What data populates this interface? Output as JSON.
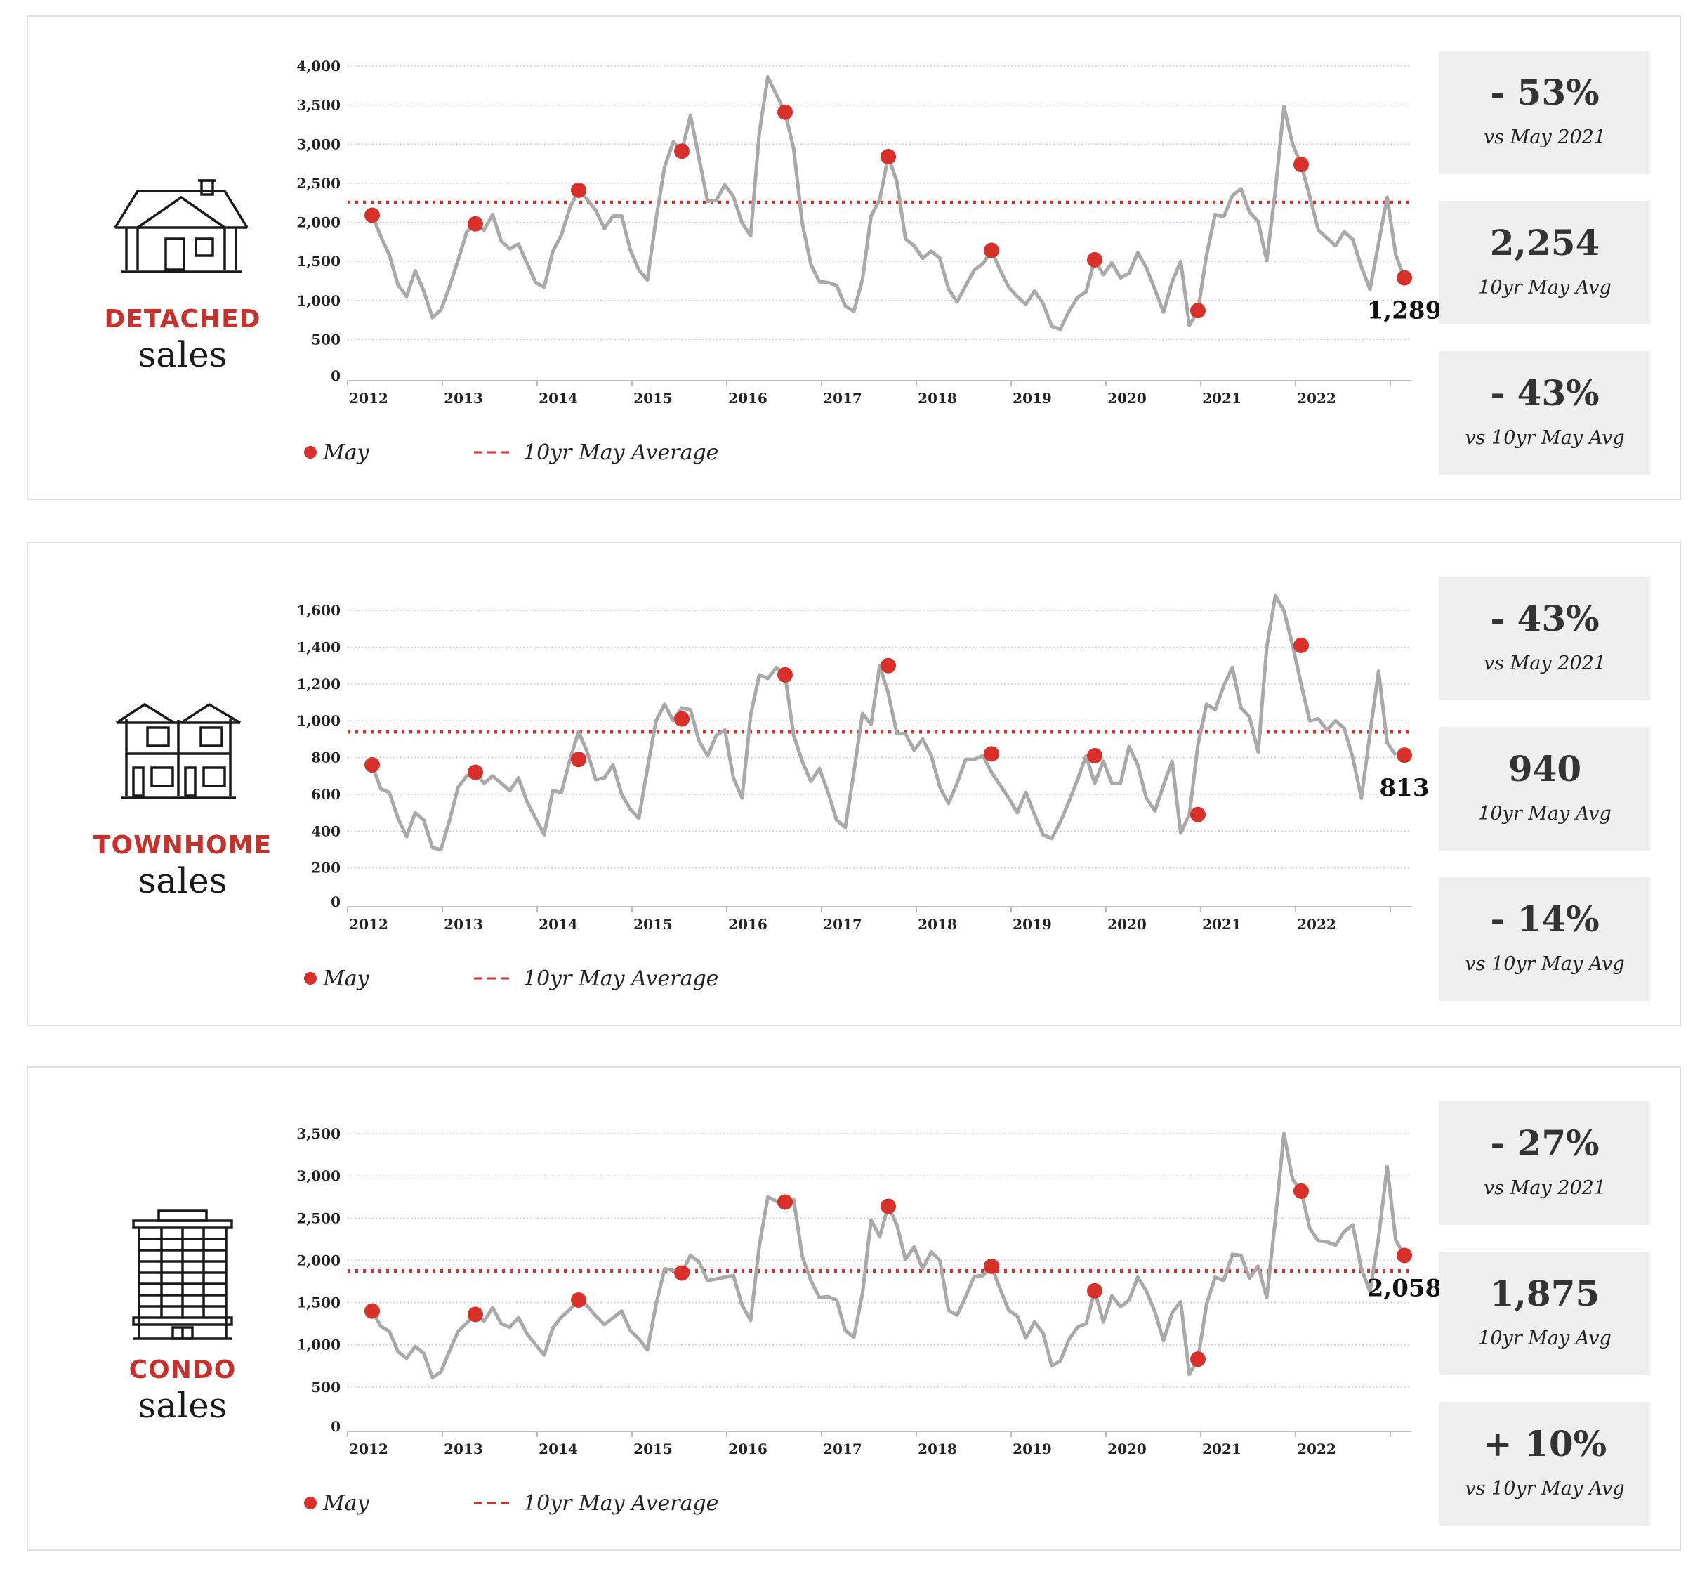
{
  "colors": {
    "accent": "#c8312b",
    "line": "#a9a9a9",
    "dot": "#d9302a",
    "box": "#efefef"
  },
  "x_tick_labels": [
    "2012",
    "2013",
    "2014",
    "2015",
    "2016",
    "2017",
    "2018",
    "2019",
    "2020",
    "2021",
    "2022"
  ],
  "legend": {
    "may": "May",
    "avg": "10yr May Average"
  },
  "panels": [
    {
      "id": "detached",
      "icon": "house-icon",
      "type_label": "DETACHED",
      "sales_label": "sales",
      "stats": [
        {
          "big": "- 53%",
          "small": "vs May 2021"
        },
        {
          "big": "2,254",
          "small": "10yr  May Avg"
        },
        {
          "big": "- 43%",
          "small": "vs 10yr May Avg"
        }
      ]
    },
    {
      "id": "townhome",
      "icon": "townhome-icon",
      "type_label": "TOWNHOME",
      "sales_label": "sales",
      "stats": [
        {
          "big": "- 43%",
          "small": "vs May 2021"
        },
        {
          "big": "940",
          "small": "10yr  May Avg"
        },
        {
          "big": "- 14%",
          "small": "vs 10yr May Avg"
        }
      ]
    },
    {
      "id": "condo",
      "icon": "condo-building-icon",
      "type_label": "CONDO",
      "sales_label": "sales",
      "stats": [
        {
          "big": "- 27%",
          "small": "vs May 2021"
        },
        {
          "big": "1,875",
          "small": "10yr  May Avg"
        },
        {
          "big": "+ 10%",
          "small": "vs 10yr May Avg"
        }
      ]
    }
  ],
  "chart_data": [
    {
      "type": "line",
      "title": "",
      "xlabel": "",
      "ylabel": "",
      "ylim": [
        0,
        4000
      ],
      "yticks": [
        0,
        500,
        1000,
        1500,
        2000,
        2500,
        3000,
        3500,
        4000
      ],
      "ytick_labels": [
        "0",
        "500",
        "1,000",
        "1,500",
        "2,000",
        "2,500",
        "3,000",
        "3,500",
        "4,000"
      ],
      "x_start": "2012-05",
      "x_end": "2022-05",
      "series": [
        {
          "name": "",
          "values": [
            2090,
            1820,
            1580,
            1200,
            1050,
            1380,
            1120,
            780,
            880,
            1180,
            1520,
            1880,
            1980,
            1900,
            2100,
            1760,
            1660,
            1720,
            1480,
            1230,
            1170,
            1630,
            1840,
            2190,
            2410,
            2290,
            2150,
            1920,
            2080,
            2080,
            1650,
            1390,
            1260,
            2040,
            2710,
            3030,
            2910,
            3370,
            2820,
            2270,
            2280,
            2480,
            2330,
            1990,
            1830,
            3140,
            3860,
            3630,
            3410,
            2940,
            1990,
            1460,
            1240,
            1230,
            1190,
            930,
            860,
            1270,
            2080,
            2290,
            2840,
            2520,
            1790,
            1700,
            1540,
            1630,
            1540,
            1150,
            980,
            1190,
            1390,
            1470,
            1640,
            1390,
            1170,
            1050,
            950,
            1120,
            960,
            670,
            630,
            860,
            1040,
            1110,
            1520,
            1330,
            1480,
            1290,
            1350,
            1610,
            1420,
            1140,
            850,
            1240,
            1500,
            680,
            870,
            1580,
            2100,
            2070,
            2340,
            2430,
            2130,
            2010,
            1510,
            2410,
            3480,
            3000,
            2740,
            2330,
            1900,
            1800,
            1700,
            1880,
            1780,
            1430,
            1140,
            1730,
            2320,
            1580,
            1289
          ]
        }
      ],
      "may_points": {
        "name": "May",
        "x": [
          "2012-05",
          "2013-05",
          "2014-05",
          "2015-05",
          "2016-05",
          "2017-05",
          "2018-05",
          "2019-05",
          "2020-05",
          "2021-05",
          "2022-05"
        ],
        "values": [
          2090,
          1980,
          2410,
          2910,
          3410,
          2840,
          1640,
          1520,
          870,
          2740,
          1289
        ]
      },
      "average": {
        "name": "10yr May Average",
        "value": 2254
      },
      "annotation": {
        "x": "2022-05",
        "text": "1,289"
      },
      "grid": true,
      "legend_position": "bottom-left"
    },
    {
      "type": "line",
      "title": "",
      "xlabel": "",
      "ylabel": "",
      "ylim": [
        0,
        1700
      ],
      "yticks": [
        0,
        200,
        400,
        600,
        800,
        1000,
        1200,
        1400,
        1600
      ],
      "ytick_labels": [
        "0",
        "200",
        "400",
        "600",
        "800",
        "1,000",
        "1,200",
        "1,400",
        "1,600"
      ],
      "x_start": "2012-05",
      "x_end": "2022-05",
      "series": [
        {
          "name": "",
          "values": [
            760,
            630,
            610,
            470,
            370,
            500,
            460,
            310,
            300,
            460,
            640,
            700,
            720,
            660,
            700,
            660,
            620,
            690,
            560,
            470,
            380,
            620,
            610,
            790,
            940,
            830,
            680,
            690,
            760,
            600,
            520,
            470,
            740,
            1000,
            1090,
            1000,
            1070,
            1060,
            890,
            810,
            920,
            950,
            690,
            580,
            1030,
            1250,
            1230,
            1290,
            1250,
            920,
            780,
            670,
            740,
            610,
            460,
            420,
            720,
            1040,
            980,
            1300,
            1150,
            930,
            930,
            840,
            900,
            810,
            640,
            550,
            660,
            790,
            790,
            810,
            720,
            650,
            580,
            500,
            610,
            490,
            380,
            360,
            450,
            560,
            680,
            810,
            660,
            780,
            660,
            660,
            860,
            760,
            580,
            510,
            650,
            780,
            390,
            490,
            870,
            1090,
            1060,
            1190,
            1290,
            1070,
            1020,
            830,
            1400,
            1680,
            1600,
            1410,
            1200,
            1000,
            1010,
            950,
            1000,
            960,
            800,
            580,
            930,
            1270,
            880,
            813
          ]
        }
      ],
      "may_points": {
        "name": "May",
        "x": [
          "2012-05",
          "2013-05",
          "2014-05",
          "2015-05",
          "2016-05",
          "2017-05",
          "2018-05",
          "2019-05",
          "2020-05",
          "2021-05",
          "2022-05"
        ],
        "values": [
          760,
          720,
          790,
          1010,
          1250,
          1300,
          820,
          810,
          490,
          1410,
          813
        ]
      },
      "average": {
        "name": "10yr May Average",
        "value": 940
      },
      "annotation": {
        "x": "2022-05",
        "text": "813"
      },
      "grid": true,
      "legend_position": "bottom-left"
    },
    {
      "type": "line",
      "title": "",
      "xlabel": "",
      "ylabel": "",
      "ylim": [
        0,
        3700
      ],
      "yticks": [
        0,
        500,
        1000,
        1500,
        2000,
        2500,
        3000,
        3500
      ],
      "ytick_labels": [
        "0",
        "500",
        "1,000",
        "1,500",
        "2,000",
        "2,500",
        "3,000",
        "3,500"
      ],
      "x_start": "2012-05",
      "x_end": "2022-05",
      "series": [
        {
          "name": "",
          "values": [
            1400,
            1220,
            1160,
            920,
            840,
            980,
            900,
            610,
            680,
            930,
            1160,
            1260,
            1360,
            1280,
            1440,
            1250,
            1210,
            1320,
            1130,
            1000,
            880,
            1200,
            1330,
            1420,
            1530,
            1460,
            1340,
            1240,
            1320,
            1400,
            1170,
            1070,
            940,
            1480,
            1900,
            1880,
            1850,
            2060,
            1980,
            1760,
            1780,
            1800,
            1820,
            1470,
            1290,
            2170,
            2750,
            2700,
            2690,
            2720,
            2050,
            1760,
            1560,
            1570,
            1530,
            1170,
            1090,
            1610,
            2480,
            2280,
            2640,
            2420,
            2010,
            2160,
            1900,
            2100,
            2000,
            1410,
            1350,
            1570,
            1810,
            1820,
            1930,
            1660,
            1410,
            1340,
            1080,
            1270,
            1140,
            750,
            810,
            1060,
            1210,
            1250,
            1640,
            1270,
            1580,
            1450,
            1530,
            1800,
            1640,
            1390,
            1050,
            1380,
            1510,
            650,
            830,
            1480,
            1800,
            1760,
            2070,
            2060,
            1790,
            1930,
            1560,
            2480,
            3500,
            2960,
            2820,
            2380,
            2230,
            2220,
            2180,
            2340,
            2420,
            1900,
            1630,
            2270,
            3110,
            2240,
            2058
          ]
        }
      ],
      "may_points": {
        "name": "May",
        "x": [
          "2012-05",
          "2013-05",
          "2014-05",
          "2015-05",
          "2016-05",
          "2017-05",
          "2018-05",
          "2019-05",
          "2020-05",
          "2021-05",
          "2022-05"
        ],
        "values": [
          1400,
          1360,
          1530,
          1850,
          2690,
          2640,
          1930,
          1640,
          830,
          2820,
          2058
        ]
      },
      "average": {
        "name": "10yr May Average",
        "value": 1875
      },
      "annotation": {
        "x": "2022-05",
        "text": "2,058"
      },
      "grid": true,
      "legend_position": "bottom-left"
    }
  ]
}
